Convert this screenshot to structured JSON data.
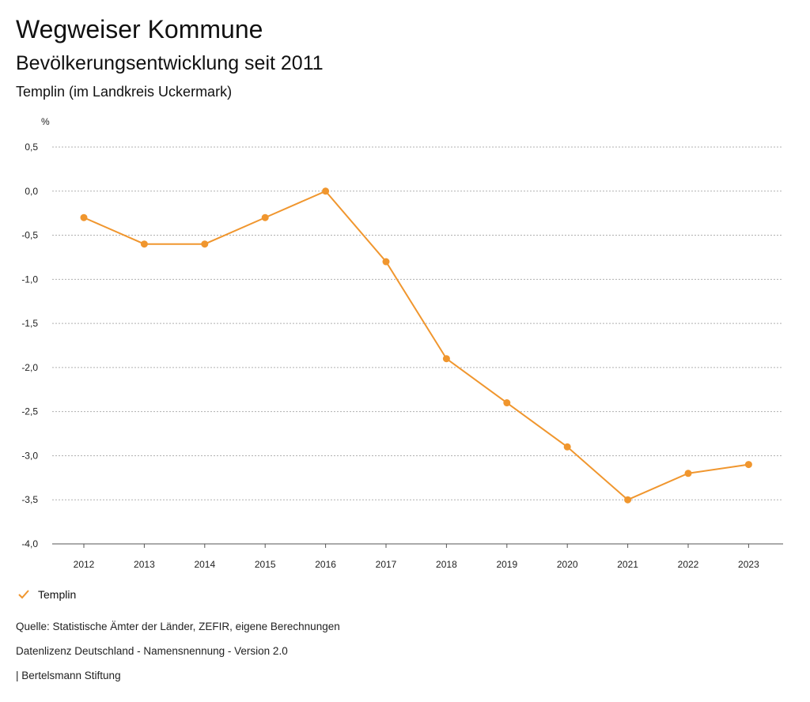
{
  "header": {
    "title": "Wegweiser Kommune",
    "subtitle": "Bevölkerungsentwicklung seit 2011",
    "region": "Templin (im Landkreis Uckermark)"
  },
  "legend": {
    "label": "Templin",
    "icon": "check-icon"
  },
  "footer": {
    "source": "Quelle: Statistische Ämter der Länder, ZEFIR, eigene Berechnungen",
    "license": "Datenlizenz Deutschland - Namensnennung - Version 2.0",
    "publisher": "| Bertelsmann Stiftung"
  },
  "colors": {
    "series": "#f0962e",
    "grid": "#b0b0b0",
    "axis": "#555555"
  },
  "chart_data": {
    "type": "line",
    "title": "Bevölkerungsentwicklung seit 2011",
    "ylabel": "%",
    "xlabel": "",
    "categories": [
      "2012",
      "2013",
      "2014",
      "2015",
      "2016",
      "2017",
      "2018",
      "2019",
      "2020",
      "2021",
      "2022",
      "2023"
    ],
    "series": [
      {
        "name": "Templin",
        "values": [
          -0.3,
          -0.6,
          -0.6,
          -0.3,
          0.0,
          -0.8,
          -1.9,
          -2.4,
          -2.9,
          -3.5,
          -3.2,
          -3.1
        ]
      }
    ],
    "ylim": [
      -4.0,
      0.5
    ],
    "yticks": [
      0.5,
      0.0,
      -0.5,
      -1.0,
      -1.5,
      -2.0,
      -2.5,
      -3.0,
      -3.5,
      -4.0
    ],
    "ytick_labels": [
      "0,5",
      "0,0",
      "-0,5",
      "-1,0",
      "-1,5",
      "-2,0",
      "-2,5",
      "-3,0",
      "-3,5",
      "-4,0"
    ],
    "grid": true,
    "legend": "bottom-left"
  }
}
